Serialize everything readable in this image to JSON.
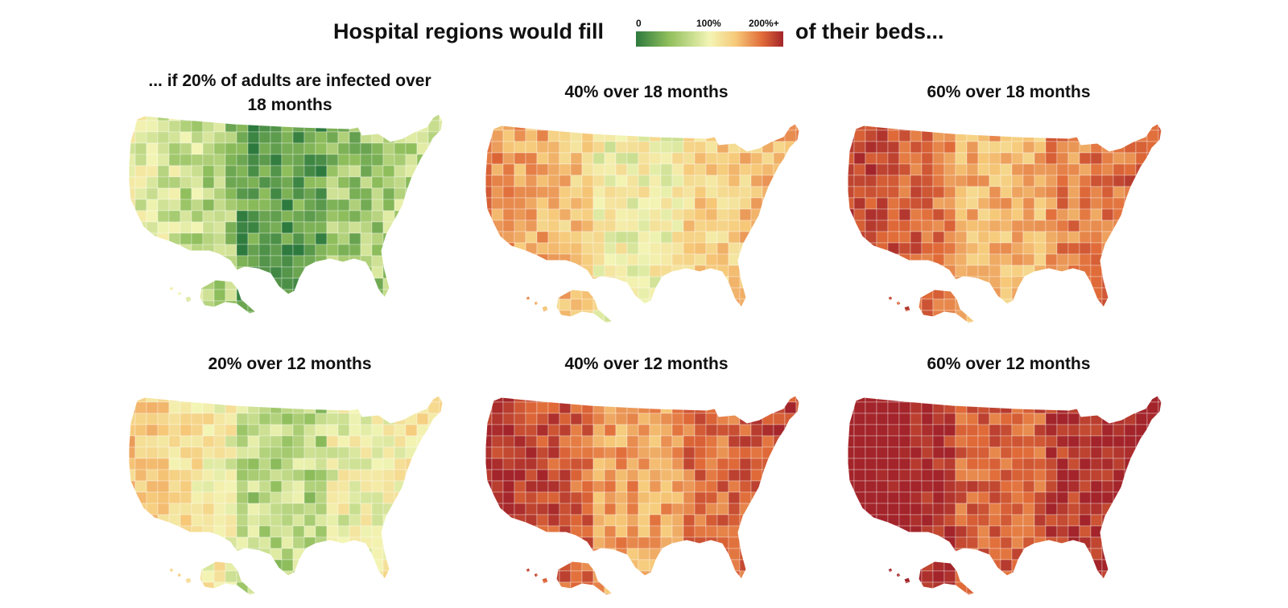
{
  "header": {
    "title_left": "Hospital regions would fill",
    "title_right": "of their beds...",
    "legend": {
      "ticks": [
        "0",
        "100%",
        "200%+"
      ],
      "colors": [
        "#2d7a3e",
        "#8fbe5c",
        "#f3f5b5",
        "#f6c878",
        "#e06a38",
        "#a3242a"
      ]
    }
  },
  "panels": [
    {
      "title": "... if 20% of adults are infected over 18 months",
      "intensity": 0.22
    },
    {
      "title": "40% over 18 months",
      "intensity": 0.55
    },
    {
      "title": "60% over 18 months",
      "intensity": 0.75
    },
    {
      "title": "20% over 12 months",
      "intensity": 0.4
    },
    {
      "title": "40% over 12 months",
      "intensity": 0.8
    },
    {
      "title": "60% over 12 months",
      "intensity": 0.95
    }
  ]
}
